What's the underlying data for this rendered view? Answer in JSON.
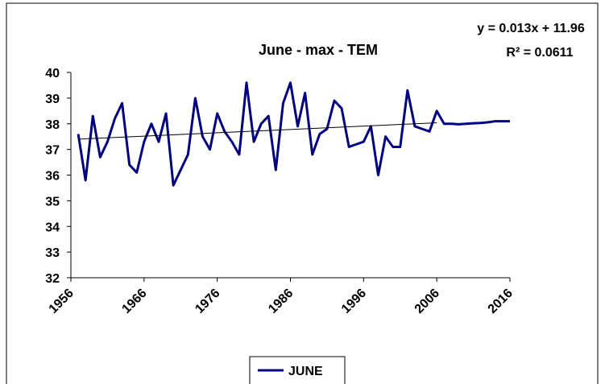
{
  "chart_data": {
    "type": "line",
    "title": "June - max - TEM",
    "x": [
      1957,
      1958,
      1959,
      1960,
      1961,
      1962,
      1963,
      1964,
      1965,
      1966,
      1967,
      1968,
      1969,
      1970,
      1971,
      1972,
      1973,
      1974,
      1975,
      1976,
      1977,
      1978,
      1979,
      1980,
      1981,
      1982,
      1983,
      1984,
      1985,
      1986,
      1987,
      1988,
      1989,
      1990,
      1991,
      1992,
      1993,
      1994,
      1995,
      1996,
      1997,
      1998,
      1999,
      2000,
      2001,
      2002,
      2003,
      2004,
      2005,
      2006,
      2007,
      2008,
      2009,
      2010,
      2011,
      2012,
      2013,
      2014,
      2015,
      2016
    ],
    "series": [
      {
        "name": "JUNE",
        "color": "#000080",
        "values": [
          37.6,
          35.8,
          38.3,
          36.7,
          37.3,
          38.2,
          38.8,
          36.4,
          36.1,
          37.3,
          38.0,
          37.3,
          38.4,
          35.6,
          36.2,
          36.8,
          39.0,
          37.5,
          37.0,
          38.4,
          37.7,
          37.3,
          36.8,
          39.6,
          37.3,
          38.0,
          38.3,
          36.2,
          38.8,
          39.6,
          37.9,
          39.2,
          36.8,
          37.6,
          37.8,
          38.9,
          38.6,
          37.1,
          37.2,
          37.3,
          37.9,
          36.0,
          37.5,
          37.1,
          37.1,
          39.3,
          37.9,
          37.8,
          37.7,
          38.5,
          38.0,
          38.0,
          37.98,
          38.0,
          38.02,
          38.03,
          38.06,
          38.1,
          38.1,
          38.1
        ]
      }
    ],
    "trendline": {
      "label": "y = 0.013x + 11.96",
      "slope": 0.013,
      "intercept": 11.96,
      "r2_label": "R² = 0.0611",
      "color": "#000000"
    },
    "xlim": [
      1956,
      2016
    ],
    "xticks": [
      1956,
      1966,
      1976,
      1986,
      1996,
      2006,
      2016
    ],
    "ylim": [
      32,
      40
    ],
    "yticks": [
      32,
      33,
      34,
      35,
      36,
      37,
      38,
      39,
      40
    ]
  }
}
